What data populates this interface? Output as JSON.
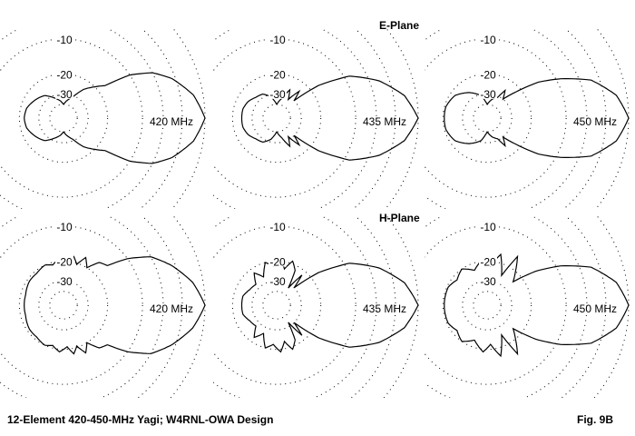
{
  "figure": {
    "e_plane_title": "E-Plane",
    "h_plane_title": "H-Plane",
    "caption": "12-Element 420-450-MHz Yagi; W4RNL-OWA Design",
    "fig_label": "Fig. 9B"
  },
  "chart_data": [
    {
      "type": "polar",
      "plane": "E-Plane",
      "label": "420 MHz",
      "scale": "ARRL log (dB)",
      "ring_db": [
        0,
        -3,
        -6,
        -10,
        -20,
        -30,
        -40
      ],
      "ring_labels": [
        "-10",
        "-20",
        "-30"
      ],
      "symmetric": true,
      "angles_deg": [
        0,
        10,
        20,
        27,
        33,
        38,
        45,
        55,
        66,
        80,
        90,
        100,
        114,
        130,
        145,
        165,
        180
      ],
      "gain_db": [
        0,
        -1.2,
        -3.5,
        -6,
        -10,
        -17,
        -20,
        -24,
        -31,
        -36,
        -40,
        -36,
        -32,
        -27,
        -25,
        -22.5,
        -22
      ]
    },
    {
      "type": "polar",
      "plane": "E-Plane",
      "label": "435 MHz",
      "scale": "ARRL log (dB)",
      "ring_db": [
        0,
        -3,
        -6,
        -10,
        -20,
        -30,
        -40
      ],
      "ring_labels": [
        "-10",
        "-20",
        "-30"
      ],
      "symmetric": true,
      "angles_deg": [
        0,
        10,
        20,
        30,
        38,
        45,
        50,
        58,
        65,
        75,
        90,
        105,
        120,
        135,
        150,
        165,
        180
      ],
      "gain_db": [
        0,
        -1.5,
        -4.5,
        -9,
        -17,
        -30,
        -24,
        -32,
        -26,
        -33,
        -40,
        -32,
        -28,
        -27,
        -25,
        -24,
        -24
      ]
    },
    {
      "type": "polar",
      "plane": "E-Plane",
      "label": "450 MHz",
      "scale": "ARRL log (dB)",
      "ring_db": [
        0,
        -3,
        -6,
        -10,
        -20,
        -30,
        -40
      ],
      "ring_labels": [
        "-10",
        "-20",
        "-30"
      ],
      "symmetric": true,
      "angles_deg": [
        0,
        10,
        20,
        28,
        35,
        42,
        50,
        57,
        63,
        75,
        90,
        105,
        125,
        145,
        165,
        180
      ],
      "gain_db": [
        0,
        -1.3,
        -4.2,
        -9,
        -14,
        -22,
        -30,
        -25,
        -31,
        -34,
        -40,
        -31,
        -26,
        -22,
        -20.5,
        -20.5
      ]
    },
    {
      "type": "polar",
      "plane": "H-Plane",
      "label": "420 MHz",
      "scale": "ARRL log (dB)",
      "ring_db": [
        0,
        -3,
        -6,
        -10,
        -20,
        -30,
        -40
      ],
      "ring_labels": [
        "-10",
        "-20",
        "-30"
      ],
      "symmetric": true,
      "angles_deg": [
        0,
        10,
        20,
        29,
        36,
        42,
        50,
        58,
        65,
        72,
        78,
        85,
        95,
        105,
        115,
        130,
        145,
        165,
        180
      ],
      "gain_db": [
        0,
        -1.3,
        -3.5,
        -6,
        -10,
        -15,
        -16,
        -20,
        -17,
        -20.5,
        -18,
        -21,
        -19,
        -21,
        -20,
        -21,
        -21,
        -22,
        -22
      ]
    },
    {
      "type": "polar",
      "plane": "H-Plane",
      "label": "435 MHz",
      "scale": "ARRL log (dB)",
      "ring_db": [
        0,
        -3,
        -6,
        -10,
        -20,
        -30,
        -40
      ],
      "ring_labels": [
        "-10",
        "-20",
        "-30"
      ],
      "symmetric": true,
      "angles_deg": [
        0,
        10,
        20,
        30,
        38,
        45,
        50,
        56,
        62,
        70,
        78,
        85,
        95,
        105,
        115,
        125,
        135,
        150,
        165,
        180
      ],
      "gain_db": [
        0,
        -1.5,
        -4.5,
        -9,
        -17,
        -30,
        -22,
        -33,
        -22,
        -19,
        -23,
        -19,
        -22,
        -20,
        -26,
        -22,
        -27,
        -26,
        -24,
        -24
      ]
    },
    {
      "type": "polar",
      "plane": "H-Plane",
      "label": "450 MHz",
      "scale": "ARRL log (dB)",
      "ring_db": [
        0,
        -3,
        -6,
        -10,
        -20,
        -30,
        -40
      ],
      "ring_labels": [
        "-10",
        "-20",
        "-30"
      ],
      "symmetric": true,
      "angles_deg": [
        0,
        10,
        20,
        28,
        35,
        42,
        50,
        58,
        64,
        75,
        85,
        95,
        110,
        125,
        140,
        155,
        180
      ],
      "gain_db": [
        0,
        -1.3,
        -4.2,
        -9,
        -15,
        -24,
        -20,
        -15.5,
        -25,
        -17,
        -22,
        -19,
        -23,
        -20,
        -22,
        -20.5,
        -20.5
      ]
    }
  ]
}
